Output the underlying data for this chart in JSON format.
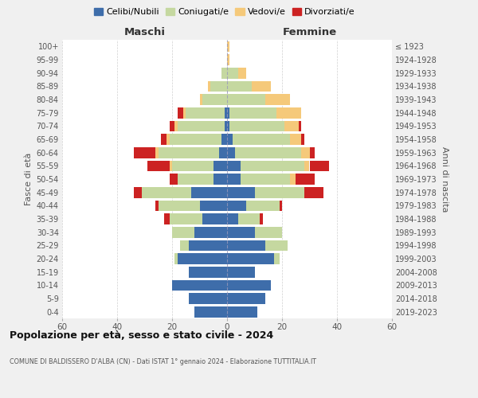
{
  "age_groups": [
    "0-4",
    "5-9",
    "10-14",
    "15-19",
    "20-24",
    "25-29",
    "30-34",
    "35-39",
    "40-44",
    "45-49",
    "50-54",
    "55-59",
    "60-64",
    "65-69",
    "70-74",
    "75-79",
    "80-84",
    "85-89",
    "90-94",
    "95-99",
    "100+"
  ],
  "birth_years": [
    "2019-2023",
    "2014-2018",
    "2009-2013",
    "2004-2008",
    "1999-2003",
    "1994-1998",
    "1989-1993",
    "1984-1988",
    "1979-1983",
    "1974-1978",
    "1969-1973",
    "1964-1968",
    "1959-1963",
    "1954-1958",
    "1949-1953",
    "1944-1948",
    "1939-1943",
    "1934-1938",
    "1929-1933",
    "1924-1928",
    "≤ 1923"
  ],
  "colors": {
    "celibi": "#3e6daa",
    "coniugati": "#c5d8a0",
    "vedovi": "#f5c97a",
    "divorziati": "#cc2222"
  },
  "maschi": {
    "celibi": [
      12,
      14,
      20,
      14,
      18,
      14,
      12,
      9,
      10,
      13,
      5,
      5,
      3,
      2,
      1,
      1,
      0,
      0,
      0,
      0,
      0
    ],
    "coniugati": [
      0,
      0,
      0,
      0,
      1,
      3,
      8,
      12,
      15,
      18,
      13,
      15,
      22,
      19,
      17,
      14,
      9,
      6,
      2,
      0,
      0
    ],
    "vedovi": [
      0,
      0,
      0,
      0,
      0,
      0,
      0,
      0,
      0,
      0,
      0,
      1,
      1,
      1,
      1,
      1,
      1,
      1,
      0,
      0,
      0
    ],
    "divorziati": [
      0,
      0,
      0,
      0,
      0,
      0,
      0,
      2,
      1,
      3,
      3,
      8,
      8,
      2,
      2,
      2,
      0,
      0,
      0,
      0,
      0
    ]
  },
  "femmine": {
    "celibi": [
      11,
      14,
      16,
      10,
      17,
      14,
      10,
      4,
      7,
      10,
      5,
      5,
      3,
      2,
      1,
      1,
      0,
      0,
      0,
      0,
      0
    ],
    "coniugati": [
      0,
      0,
      0,
      0,
      2,
      8,
      10,
      8,
      12,
      18,
      18,
      23,
      24,
      21,
      20,
      17,
      14,
      9,
      4,
      0,
      0
    ],
    "vedovi": [
      0,
      0,
      0,
      0,
      0,
      0,
      0,
      0,
      0,
      0,
      2,
      2,
      3,
      4,
      5,
      9,
      9,
      7,
      3,
      1,
      1
    ],
    "divorziati": [
      0,
      0,
      0,
      0,
      0,
      0,
      0,
      1,
      1,
      7,
      7,
      7,
      2,
      1,
      1,
      0,
      0,
      0,
      0,
      0,
      0
    ]
  },
  "xlim": 60,
  "title_main": "Popolazione per età, sesso e stato civile - 2024",
  "title_sub": "COMUNE DI BALDISSERO D'ALBA (CN) - Dati ISTAT 1° gennaio 2024 - Elaborazione TUTTITALIA.IT",
  "xlabel_left": "Maschi",
  "xlabel_right": "Femmine",
  "ylabel_left": "Fasce di età",
  "ylabel_right": "Anni di nascita",
  "legend_labels": [
    "Celibi/Nubili",
    "Coniugati/e",
    "Vedovi/e",
    "Divorziati/e"
  ],
  "bg_color": "#f0f0f0",
  "plot_bg": "#ffffff",
  "grid_color": "#cccccc"
}
